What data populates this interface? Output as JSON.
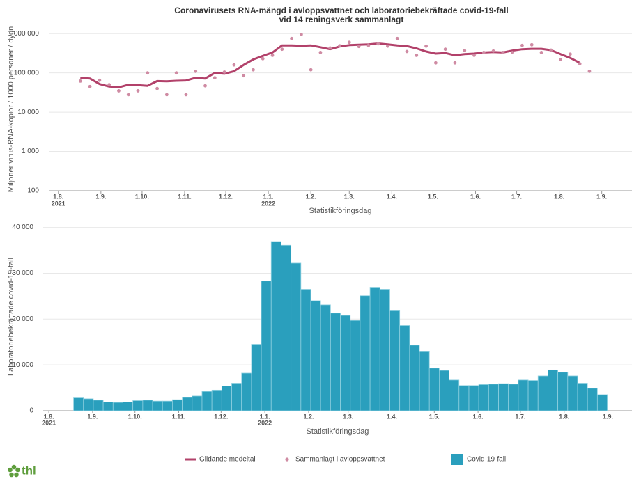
{
  "chart_data": [
    {
      "type": "line",
      "title": "Coronavirusets RNA-mängd i avloppsvattnet och laboratoriebekräftade covid-19-fall",
      "subtitle": "vid 14 reningsverk sammanlagt",
      "y_label": "Miljoner virus-RNA-kopior / 1000 personer / dygn",
      "x_label": "Statistikföringsdag",
      "log_y": true,
      "grid": true,
      "xlim": [
        -7,
        418
      ],
      "xticks": [
        {
          "value": 0,
          "label": "1.8."
        },
        {
          "value": 31,
          "label": "1.9."
        },
        {
          "value": 61,
          "label": "1.10."
        },
        {
          "value": 92,
          "label": "1.11."
        },
        {
          "value": 122,
          "label": "1.12."
        },
        {
          "value": 153,
          "label": "1.1."
        },
        {
          "value": 184,
          "label": "1.2."
        },
        {
          "value": 212,
          "label": "1.3."
        },
        {
          "value": 243,
          "label": "1.4."
        },
        {
          "value": 273,
          "label": "1.5."
        },
        {
          "value": 304,
          "label": "1.6."
        },
        {
          "value": 334,
          "label": "1.7."
        },
        {
          "value": 365,
          "label": "1.8."
        },
        {
          "value": 396,
          "label": "1.9."
        }
      ],
      "xtick_years": [
        {
          "value": 0,
          "label": "2021"
        },
        {
          "value": 153,
          "label": "2022"
        }
      ],
      "ylim": [
        100,
        1400000
      ],
      "yticks": [
        100,
        {
          "value": 1000,
          "label": "1 000"
        },
        {
          "value": 10000,
          "label": "10 000"
        },
        {
          "value": 100000,
          "label": "100 000"
        },
        {
          "value": 1000000,
          "label": "1 000 000"
        }
      ],
      "x": [
        16,
        23,
        30,
        37,
        44,
        51,
        58,
        65,
        72,
        79,
        86,
        93,
        100,
        107,
        114,
        121,
        128,
        135,
        142,
        149,
        156,
        163,
        170,
        177,
        184,
        191,
        198,
        205,
        212,
        219,
        226,
        233,
        240,
        247,
        254,
        261,
        268,
        275,
        282,
        289,
        296,
        303,
        310,
        317,
        324,
        331,
        338,
        345,
        352,
        359,
        366,
        373,
        380,
        387
      ],
      "series": [
        {
          "name": "Glidande medeltal",
          "color": "#b2416a",
          "mode": "line",
          "values": [
            75000,
            72000,
            52000,
            45000,
            43000,
            50000,
            49000,
            47000,
            62000,
            61000,
            63000,
            64000,
            75000,
            72000,
            100000,
            95000,
            110000,
            160000,
            220000,
            270000,
            330000,
            500000,
            500000,
            490000,
            500000,
            450000,
            400000,
            470000,
            510000,
            520000,
            530000,
            560000,
            530000,
            500000,
            480000,
            420000,
            350000,
            310000,
            320000,
            280000,
            300000,
            310000,
            330000,
            340000,
            330000,
            370000,
            400000,
            410000,
            410000,
            380000,
            300000,
            240000,
            180000,
            null
          ]
        },
        {
          "name": "Sammanlagt i avloppsvattnet",
          "color": "#cf8ba3",
          "mode": "markers",
          "values": [
            62000,
            45000,
            65000,
            50000,
            35000,
            28000,
            35000,
            100000,
            40000,
            28000,
            100000,
            28000,
            110000,
            47000,
            75000,
            105000,
            160000,
            85000,
            120000,
            230000,
            280000,
            400000,
            750000,
            950000,
            120000,
            330000,
            430000,
            490000,
            600000,
            470000,
            500000,
            550000,
            480000,
            750000,
            350000,
            280000,
            480000,
            180000,
            400000,
            180000,
            370000,
            280000,
            330000,
            360000,
            330000,
            330000,
            500000,
            520000,
            330000,
            380000,
            220000,
            300000,
            170000,
            110000
          ]
        }
      ]
    },
    {
      "type": "bar",
      "y_label": "Laboratoriebekräftade covid-19-fall",
      "x_label": "Statistikföringsdag",
      "grid": true,
      "xlim": [
        -4,
        413
      ],
      "xticks": [
        {
          "value": 0,
          "label": "1.8."
        },
        {
          "value": 31,
          "label": "1.9."
        },
        {
          "value": 61,
          "label": "1.10."
        },
        {
          "value": 92,
          "label": "1.11."
        },
        {
          "value": 122,
          "label": "1.12."
        },
        {
          "value": 153,
          "label": "1.1."
        },
        {
          "value": 184,
          "label": "1.2."
        },
        {
          "value": 212,
          "label": "1.3."
        },
        {
          "value": 243,
          "label": "1.4."
        },
        {
          "value": 273,
          "label": "1.5."
        },
        {
          "value": 304,
          "label": "1.6."
        },
        {
          "value": 334,
          "label": "1.7."
        },
        {
          "value": 365,
          "label": "1.8."
        },
        {
          "value": 396,
          "label": "1.9."
        }
      ],
      "xtick_years": [
        {
          "value": 0,
          "label": "2021"
        },
        {
          "value": 153,
          "label": "2022"
        }
      ],
      "ylim": [
        0,
        41000
      ],
      "yticks": [
        0,
        {
          "value": 10000,
          "label": "10 000"
        },
        {
          "value": 20000,
          "label": "20 000"
        },
        {
          "value": 30000,
          "label": "30 000"
        },
        {
          "value": 40000,
          "label": "40 000"
        }
      ],
      "bar_width": 7,
      "x": [
        21,
        28,
        35,
        42,
        49,
        56,
        63,
        70,
        77,
        84,
        91,
        98,
        105,
        112,
        119,
        126,
        133,
        140,
        147,
        154,
        161,
        168,
        175,
        182,
        189,
        196,
        203,
        210,
        217,
        224,
        231,
        238,
        245,
        252,
        259,
        266,
        273,
        280,
        287,
        294,
        301,
        308,
        315,
        322,
        329,
        336,
        343,
        350,
        357,
        364,
        371,
        378,
        385,
        392
      ],
      "series": [
        {
          "name": "Covid-19-fall",
          "color": "#2a9fbd",
          "values": [
            2800,
            2600,
            2300,
            1900,
            1800,
            1900,
            2200,
            2300,
            2100,
            2100,
            2400,
            2900,
            3200,
            4200,
            4500,
            5400,
            6000,
            8200,
            14500,
            28300,
            36900,
            36100,
            32200,
            26500,
            24000,
            23100,
            21300,
            20800,
            19700,
            25100,
            26800,
            26500,
            21800,
            18600,
            14300,
            13000,
            9300,
            8800,
            6700,
            5500,
            5500,
            5700,
            5800,
            5900,
            5800,
            6700,
            6600,
            7600,
            8900,
            8400,
            7600,
            6000,
            4900,
            3500
          ]
        }
      ]
    }
  ],
  "logo": "thl"
}
